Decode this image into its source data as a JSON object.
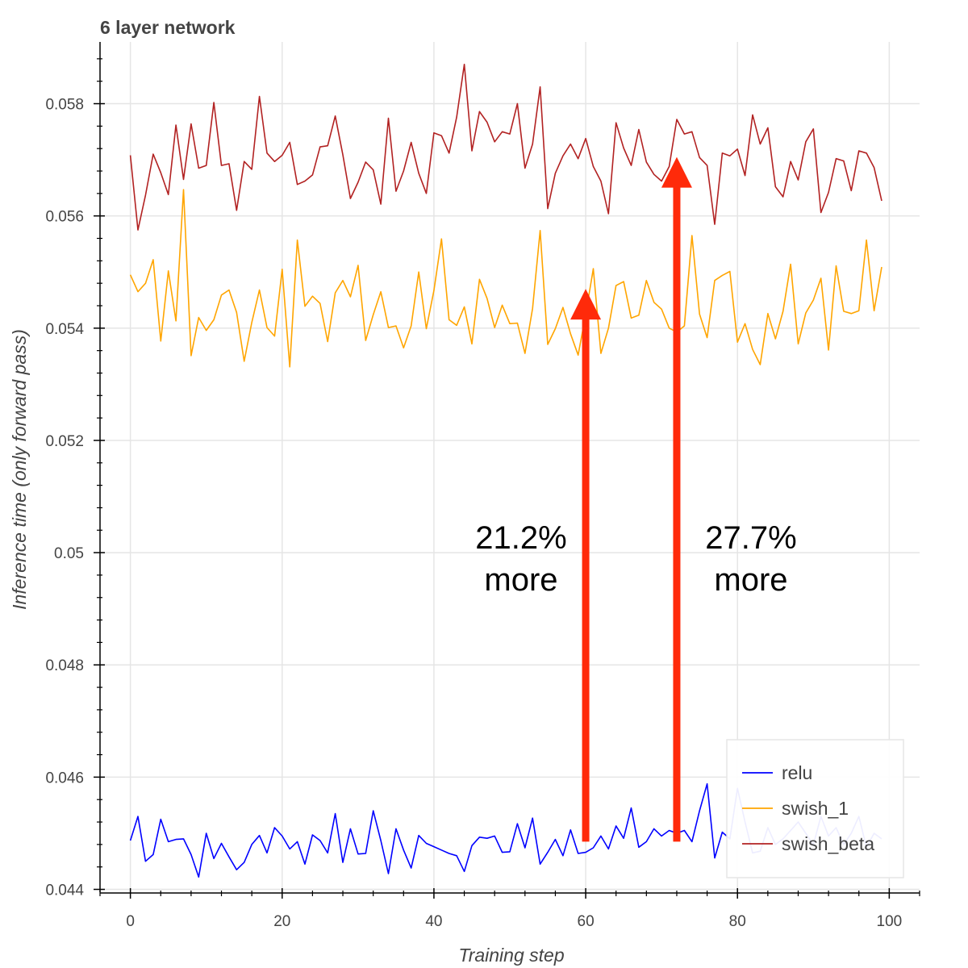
{
  "chart_data": {
    "type": "line",
    "title": "6 layer network",
    "xlabel": "Training step",
    "ylabel": "Inference time (only forward pass)",
    "xlim": [
      -4,
      104
    ],
    "ylim": [
      0.04395,
      0.0591
    ],
    "x_ticks": [
      0,
      20,
      40,
      60,
      80,
      100
    ],
    "x_tick_labels": [
      "0",
      "20",
      "40",
      "60",
      "80",
      "100"
    ],
    "y_ticks": [
      0.044,
      0.046,
      0.048,
      0.05,
      0.052,
      0.054,
      0.056,
      0.058
    ],
    "y_tick_labels": [
      "0.044",
      "0.046",
      "0.048",
      "0.05",
      "0.052",
      "0.054",
      "0.056",
      "0.058"
    ],
    "grid": true,
    "legend_position": "bottom-right",
    "series": [
      {
        "name": "relu",
        "color": "#0000ff",
        "values": [
          0.04487,
          0.0453,
          0.0445,
          0.04462,
          0.04525,
          0.04485,
          0.04489,
          0.0449,
          0.04462,
          0.04422,
          0.045,
          0.04455,
          0.04482,
          0.04458,
          0.04435,
          0.04448,
          0.0448,
          0.04496,
          0.04465,
          0.0451,
          0.04495,
          0.04472,
          0.04485,
          0.04445,
          0.04497,
          0.04487,
          0.04465,
          0.04535,
          0.04448,
          0.04508,
          0.04463,
          0.04464,
          0.0454,
          0.04487,
          0.04428,
          0.04508,
          0.0447,
          0.04438,
          0.04496,
          0.04482,
          0.04476,
          0.0447,
          0.04464,
          0.0446,
          0.04432,
          0.04478,
          0.04493,
          0.04491,
          0.04495,
          0.04466,
          0.04467,
          0.04517,
          0.04474,
          0.04527,
          0.04445,
          0.04466,
          0.04489,
          0.0446,
          0.04506,
          0.04464,
          0.04466,
          0.04474,
          0.04495,
          0.04472,
          0.04513,
          0.04491,
          0.04545,
          0.04475,
          0.04485,
          0.04508,
          0.04495,
          0.04505,
          0.045,
          0.04505,
          0.04485,
          0.0454,
          0.04588,
          0.04456,
          0.04502,
          0.0449,
          0.0458,
          0.0452,
          0.04465,
          0.04468,
          0.0451,
          0.0448,
          0.0449,
          0.04505,
          0.0452,
          0.045,
          0.0448,
          0.0453,
          0.04495,
          0.0451,
          0.0448,
          0.045,
          0.0453,
          0.04475,
          0.045,
          0.0449
        ]
      },
      {
        "name": "swish_1",
        "color": "#ffa500",
        "values": [
          0.05495,
          0.05465,
          0.0548,
          0.05522,
          0.05377,
          0.05502,
          0.05413,
          0.05647,
          0.05351,
          0.05419,
          0.05396,
          0.05415,
          0.05459,
          0.05468,
          0.05428,
          0.05341,
          0.0541,
          0.05468,
          0.05401,
          0.05386,
          0.05505,
          0.05331,
          0.05557,
          0.05439,
          0.05457,
          0.05444,
          0.05376,
          0.05463,
          0.05485,
          0.05456,
          0.05512,
          0.05378,
          0.05424,
          0.05465,
          0.05401,
          0.05404,
          0.05365,
          0.05404,
          0.055,
          0.05399,
          0.05467,
          0.05559,
          0.05415,
          0.05405,
          0.05438,
          0.05372,
          0.05487,
          0.05453,
          0.05401,
          0.05441,
          0.05408,
          0.05409,
          0.05355,
          0.05435,
          0.05574,
          0.05371,
          0.05399,
          0.05437,
          0.0539,
          0.05352,
          0.05425,
          0.05506,
          0.05355,
          0.054,
          0.05476,
          0.05483,
          0.05418,
          0.05423,
          0.05485,
          0.05446,
          0.05434,
          0.054,
          0.05393,
          0.05404,
          0.05565,
          0.05425,
          0.05383,
          0.05485,
          0.05494,
          0.05501,
          0.05375,
          0.05408,
          0.05362,
          0.05335,
          0.05426,
          0.05381,
          0.0543,
          0.05514,
          0.05372,
          0.05427,
          0.0545,
          0.05489,
          0.05361,
          0.05511,
          0.0543,
          0.05426,
          0.05431,
          0.05557,
          0.05431,
          0.05509
        ]
      },
      {
        "name": "swish_beta",
        "color": "#b22222",
        "values": [
          0.05708,
          0.05575,
          0.05637,
          0.0571,
          0.05677,
          0.05638,
          0.05762,
          0.05665,
          0.05764,
          0.05685,
          0.0569,
          0.05802,
          0.0569,
          0.05693,
          0.0561,
          0.05697,
          0.05683,
          0.05813,
          0.05712,
          0.05697,
          0.05708,
          0.05731,
          0.05656,
          0.05662,
          0.05673,
          0.05723,
          0.05725,
          0.05778,
          0.05709,
          0.05631,
          0.0566,
          0.05696,
          0.05682,
          0.05621,
          0.05774,
          0.05644,
          0.0568,
          0.05731,
          0.05676,
          0.0564,
          0.05748,
          0.05743,
          0.05712,
          0.05776,
          0.0587,
          0.05716,
          0.05786,
          0.05767,
          0.05732,
          0.0575,
          0.05746,
          0.058,
          0.05685,
          0.05728,
          0.0583,
          0.05613,
          0.05676,
          0.05707,
          0.05728,
          0.05702,
          0.05738,
          0.05688,
          0.05662,
          0.05604,
          0.05766,
          0.05721,
          0.0569,
          0.05754,
          0.05696,
          0.05674,
          0.05662,
          0.05688,
          0.05772,
          0.05746,
          0.0575,
          0.05704,
          0.0569,
          0.05585,
          0.05712,
          0.05707,
          0.05719,
          0.05672,
          0.0578,
          0.05728,
          0.05757,
          0.05652,
          0.05634,
          0.05697,
          0.05664,
          0.05732,
          0.05755,
          0.05606,
          0.05642,
          0.05702,
          0.05698,
          0.05645,
          0.05716,
          0.05712,
          0.05686,
          0.05627
        ]
      }
    ],
    "annotations": [
      {
        "text_line1": "21.2%",
        "text_line2": "more",
        "arrow_x": 60,
        "arrow_from_y": 0.04485,
        "arrow_to_y": 0.0547,
        "color": "#ff2a0a"
      },
      {
        "text_line1": "27.7%",
        "text_line2": "more",
        "arrow_x": 72,
        "arrow_from_y": 0.04485,
        "arrow_to_y": 0.05705,
        "color": "#ff2a0a"
      }
    ]
  }
}
